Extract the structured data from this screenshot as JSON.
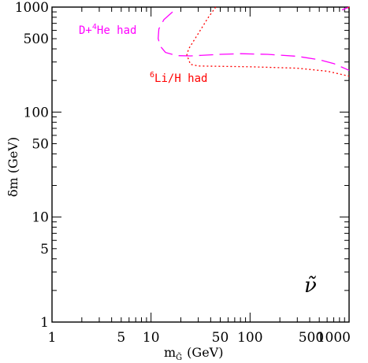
{
  "chart_data": {
    "type": "line",
    "title": "",
    "xlabel_main": "m",
    "xlabel_sub": "G̃",
    "xlabel_unit": "(GeV)",
    "ylabel": "δm (GeV)",
    "xscale": "log",
    "yscale": "log",
    "xlim": [
      1,
      1000
    ],
    "ylim": [
      1,
      1000
    ],
    "x_tick_labels": [
      {
        "value": 1,
        "label": "1"
      },
      {
        "value": 5,
        "label": "5"
      },
      {
        "value": 10,
        "label": "10"
      },
      {
        "value": 50,
        "label": "50"
      },
      {
        "value": 100,
        "label": "100"
      },
      {
        "value": 500,
        "label": "500"
      },
      {
        "value": 1000,
        "label": "1000"
      }
    ],
    "y_tick_labels": [
      {
        "value": 1,
        "label": "1"
      },
      {
        "value": 5,
        "label": "5"
      },
      {
        "value": 10,
        "label": "10"
      },
      {
        "value": 50,
        "label": "50"
      },
      {
        "value": 100,
        "label": "100"
      },
      {
        "value": 500,
        "label": "500"
      },
      {
        "value": 1000,
        "label": "1000"
      }
    ],
    "grid": false,
    "series": [
      {
        "label": "D+⁴He had",
        "label_prefix": "D+",
        "label_sup": "4",
        "label_suffix": "He had",
        "color": "#ff00ff",
        "style": "dashed",
        "segments": [
          [
            [
              16.5,
              900
            ],
            [
              13.5,
              760
            ],
            [
              12,
              620
            ],
            [
              11.8,
              500
            ],
            [
              12.5,
              420
            ],
            [
              14,
              370
            ],
            [
              18,
              345
            ],
            [
              25,
              343
            ],
            [
              50,
              355
            ],
            [
              80,
              360
            ],
            [
              150,
              355
            ],
            [
              300,
              340
            ],
            [
              500,
              315
            ],
            [
              700,
              290
            ],
            [
              1000,
              250
            ]
          ],
          [
            [
              1000,
              1000
            ],
            [
              850,
              940
            ]
          ]
        ]
      },
      {
        "label": "⁶Li/H had",
        "label_prefix": "",
        "label_sup": "6",
        "label_suffix": "Li/H had",
        "color": "#ff0000",
        "style": "dotted",
        "segments": [
          [
            [
              45,
              1000
            ],
            [
              38,
              800
            ],
            [
              30,
              560
            ],
            [
              24,
              400
            ],
            [
              23,
              350
            ],
            [
              25,
              285
            ],
            [
              30,
              275
            ],
            [
              100,
              270
            ],
            [
              300,
              262
            ],
            [
              600,
              245
            ],
            [
              1000,
              220
            ]
          ],
          [
            [
              1000,
              1000
            ],
            [
              950,
              960
            ]
          ]
        ]
      }
    ],
    "annotation": "ν̃"
  }
}
